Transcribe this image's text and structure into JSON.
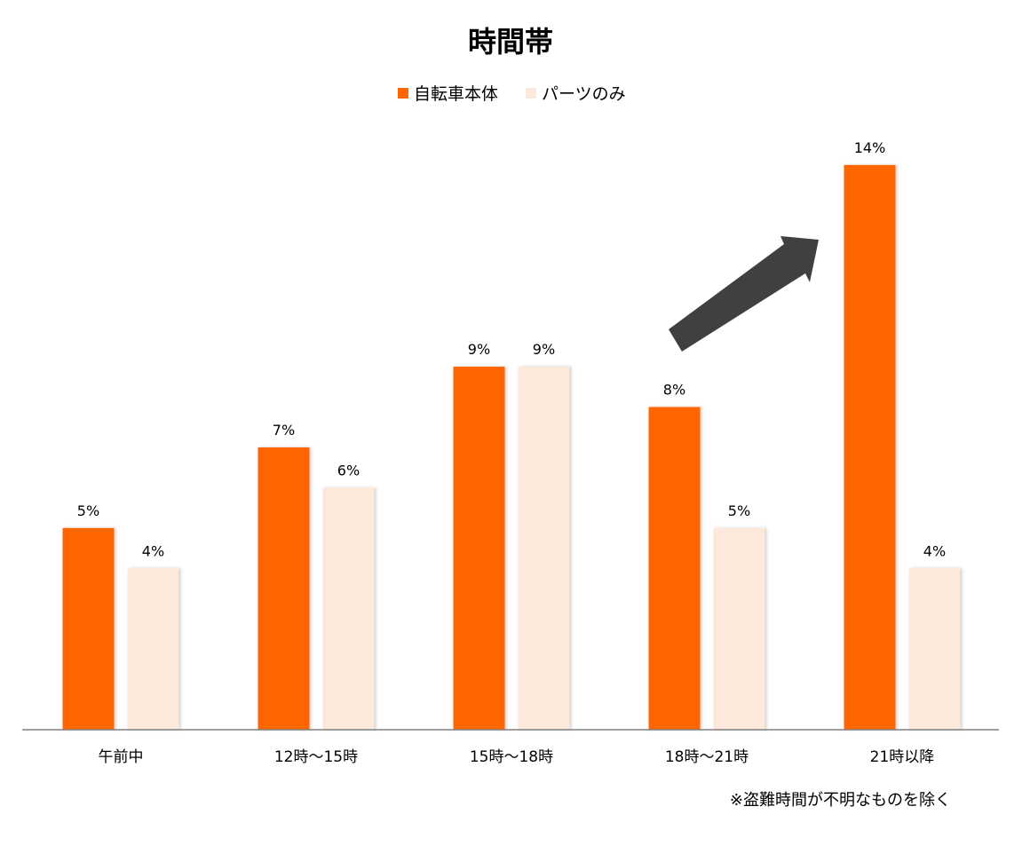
{
  "chart_data": {
    "type": "bar",
    "title": "時間帯",
    "categories": [
      "午前中",
      "12時〜15時",
      "15時〜18時",
      "18時〜21時",
      "21時以降"
    ],
    "series": [
      {
        "name": "自転車本体",
        "color": "#FF6600",
        "values": [
          5,
          7,
          9,
          8,
          14
        ],
        "labels": [
          "5%",
          "7%",
          "9%",
          "8%",
          "14%"
        ]
      },
      {
        "name": "パーツのみ",
        "color": "#FCE9DC",
        "values": [
          4,
          6,
          9,
          5,
          4
        ],
        "labels": [
          "4%",
          "6%",
          "9%",
          "5%",
          "4%"
        ]
      }
    ],
    "unit": "%",
    "ylim": [
      0,
      16
    ],
    "grid": false,
    "legend_position": "top-center",
    "annotation": {
      "type": "arrow",
      "color": "#404040",
      "points_to": "21時以降"
    },
    "footnote": "※盗難時間が不明なものを除く"
  }
}
